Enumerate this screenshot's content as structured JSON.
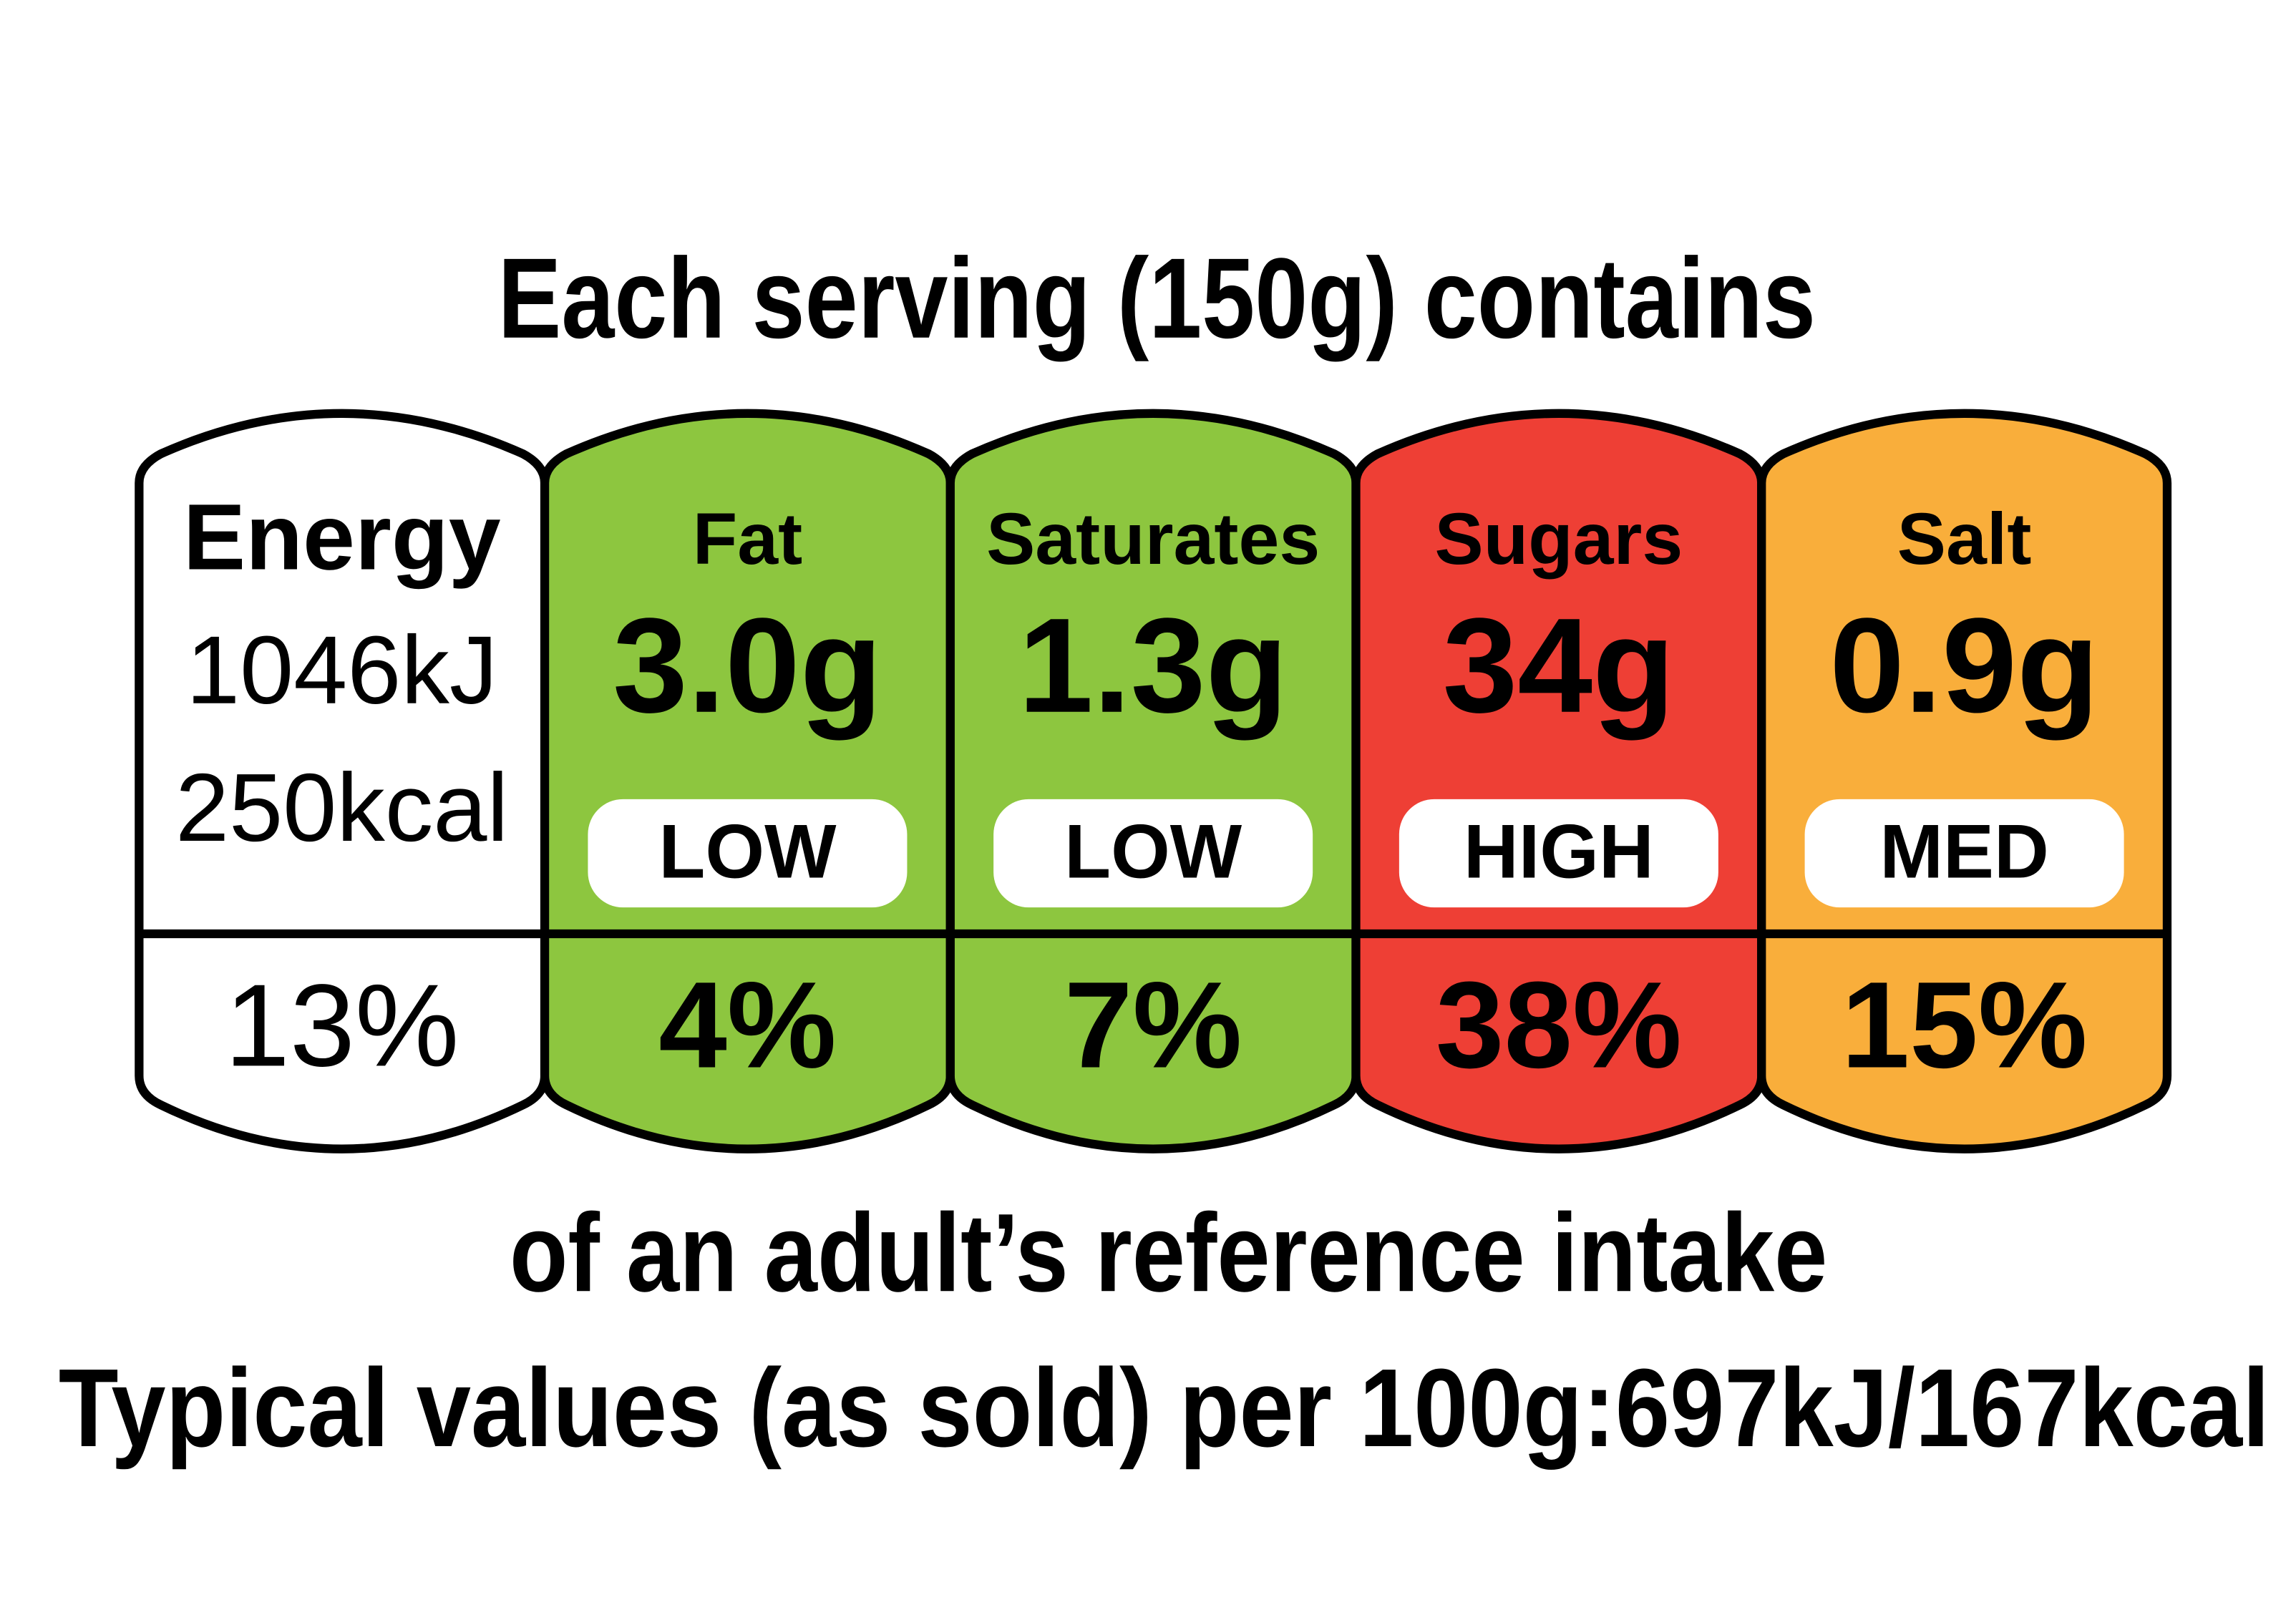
{
  "header": {
    "title": "Each serving (150g) contains"
  },
  "columns": [
    {
      "name": "Energy",
      "energy_kj": "1046kJ",
      "energy_kcal": "250kcal",
      "percent": "13%",
      "color": "#ffffff"
    },
    {
      "name": "Fat",
      "amount": "3.0g",
      "level": "LOW",
      "percent": "4%",
      "color": "#8dc63f"
    },
    {
      "name": "Saturates",
      "amount": "1.3g",
      "level": "LOW",
      "percent": "7%",
      "color": "#8dc63f"
    },
    {
      "name": "Sugars",
      "amount": "34g",
      "level": "HIGH",
      "percent": "38%",
      "color": "#ee3f35"
    },
    {
      "name": "Salt",
      "amount": "0.9g",
      "level": "MED",
      "percent": "15%",
      "color": "#f9ae3b"
    }
  ],
  "footer": {
    "line1": "of an adult’s reference intake",
    "line2": "Typical values (as sold) per 100g:697kJ/167kcal"
  }
}
